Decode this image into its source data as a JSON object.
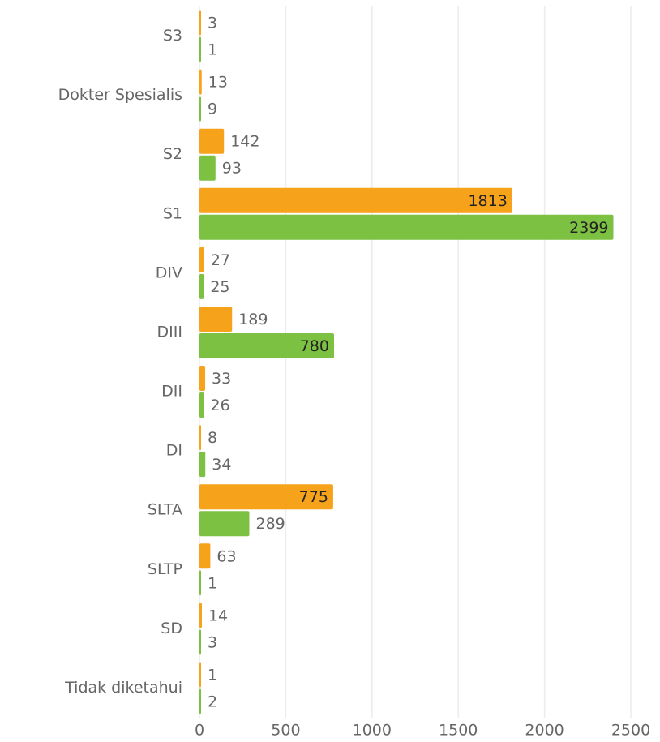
{
  "chart_data": {
    "type": "barh",
    "categories": [
      "S3",
      "Dokter Spesialis",
      "S2",
      "S1",
      "DIV",
      "DIII",
      "DII",
      "DI",
      "SLTA",
      "SLTP",
      "SD",
      "Tidak diketahui"
    ],
    "series": [
      {
        "color": "#f7a21b",
        "values": [
          3,
          13,
          142,
          1813,
          27,
          189,
          33,
          8,
          775,
          63,
          14,
          1
        ]
      },
      {
        "color": "#7dc142",
        "values": [
          1,
          9,
          93,
          2399,
          25,
          780,
          26,
          34,
          289,
          1,
          3,
          2
        ]
      }
    ],
    "xlim": [
      0,
      2500
    ],
    "xticks": [
      0,
      500,
      1000,
      1500,
      2000,
      2500
    ],
    "grid": true
  }
}
